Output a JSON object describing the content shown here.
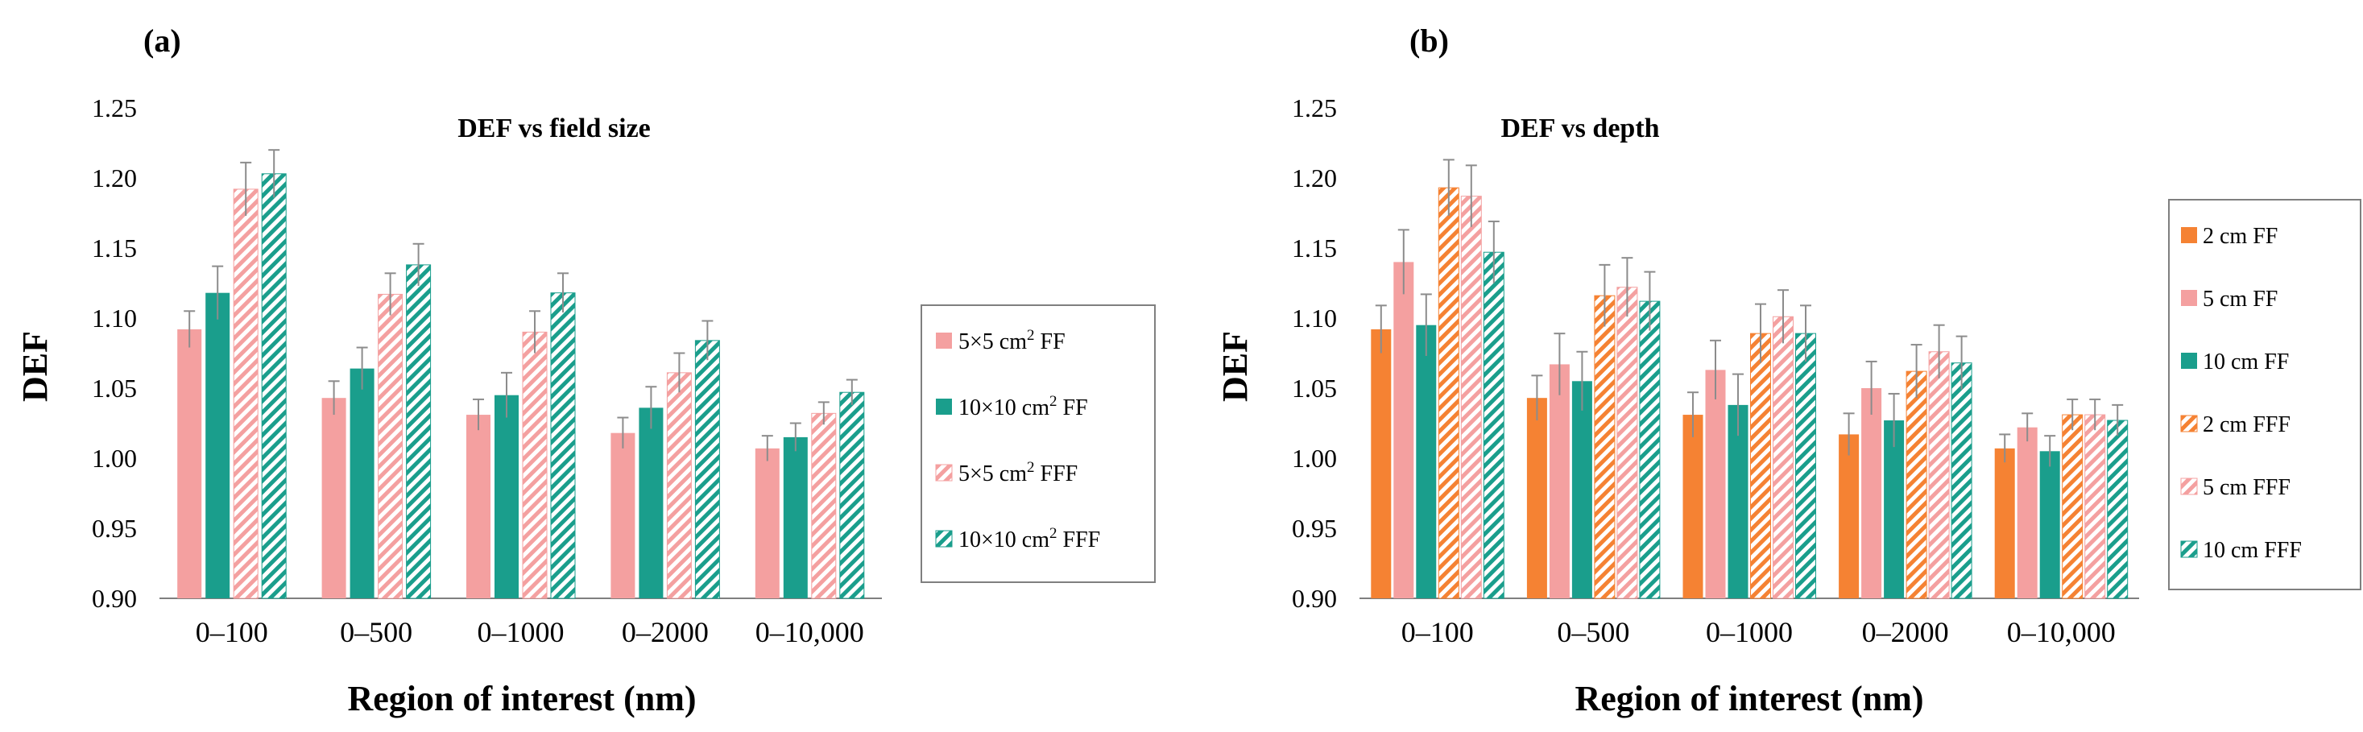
{
  "colors": {
    "pink": "#F4A0A0",
    "teal": "#1A9E8C",
    "orange": "#F58233",
    "error": "#8C8C8C",
    "axis": "#7F7F7F",
    "legend_border": "#7F7F7F"
  },
  "chart_data": [
    {
      "type": "bar",
      "panel_label": "(a)",
      "title": "DEF vs field size",
      "xlabel": "Region of interest (nm)",
      "ylabel": "DEF",
      "ylim": [
        0.9,
        1.25
      ],
      "yticks": [
        "0.90",
        "0.95",
        "1.00",
        "1.05",
        "1.10",
        "1.15",
        "1.20",
        "1.25"
      ],
      "grid": false,
      "legend_position": "right",
      "categories": [
        "0–100",
        "0–500",
        "0–1000",
        "0–2000",
        "0–10,000"
      ],
      "series": [
        {
          "name": "5×5 cm",
          "sup": "2",
          "suffix": " FF",
          "color": "#F4A0A0",
          "pattern": "solid",
          "values": [
            1.092,
            1.043,
            1.031,
            1.018,
            1.007
          ],
          "errors": [
            0.013,
            0.012,
            0.011,
            0.011,
            0.009
          ]
        },
        {
          "name": "10×10 cm",
          "sup": "2",
          "suffix": " FF",
          "color": "#1A9E8C",
          "pattern": "solid",
          "values": [
            1.118,
            1.064,
            1.045,
            1.036,
            1.015
          ],
          "errors": [
            0.019,
            0.015,
            0.016,
            0.015,
            0.01
          ]
        },
        {
          "name": "5×5 cm",
          "sup": "2",
          "suffix": " FFF",
          "color": "#F4A0A0",
          "pattern": "hatch",
          "values": [
            1.192,
            1.117,
            1.09,
            1.061,
            1.032
          ],
          "errors": [
            0.019,
            0.015,
            0.015,
            0.014,
            0.008
          ]
        },
        {
          "name": "10×10 cm",
          "sup": "2",
          "suffix": " FFF",
          "color": "#1A9E8C",
          "pattern": "hatch",
          "values": [
            1.203,
            1.138,
            1.118,
            1.084,
            1.047
          ],
          "errors": [
            0.017,
            0.015,
            0.014,
            0.014,
            0.009
          ]
        }
      ]
    },
    {
      "type": "bar",
      "panel_label": "(b)",
      "title": "DEF vs depth",
      "xlabel": "Region of interest (nm)",
      "ylabel": "DEF",
      "ylim": [
        0.9,
        1.25
      ],
      "yticks": [
        "0.90",
        "0.95",
        "1.00",
        "1.05",
        "1.10",
        "1.15",
        "1.20",
        "1.25"
      ],
      "grid": false,
      "legend_position": "right",
      "categories": [
        "0–100",
        "0–500",
        "0–1000",
        "0–2000",
        "0–10,000"
      ],
      "series": [
        {
          "name": "2 cm FF",
          "sup": "",
          "suffix": "",
          "color": "#F58233",
          "pattern": "solid",
          "values": [
            1.092,
            1.043,
            1.031,
            1.017,
            1.007
          ],
          "errors": [
            0.017,
            0.016,
            0.016,
            0.015,
            0.01
          ]
        },
        {
          "name": "5 cm FF",
          "sup": "",
          "suffix": "",
          "color": "#F4A0A0",
          "pattern": "solid",
          "values": [
            1.14,
            1.067,
            1.063,
            1.05,
            1.022
          ],
          "errors": [
            0.023,
            0.022,
            0.021,
            0.019,
            0.01
          ]
        },
        {
          "name": "10 cm FF",
          "sup": "",
          "suffix": "",
          "color": "#1A9E8C",
          "pattern": "solid",
          "values": [
            1.095,
            1.055,
            1.038,
            1.027,
            1.005
          ],
          "errors": [
            0.022,
            0.021,
            0.022,
            0.019,
            0.011
          ]
        },
        {
          "name": "2 cm FFF",
          "sup": "",
          "suffix": "",
          "color": "#F58233",
          "pattern": "hatch",
          "values": [
            1.193,
            1.116,
            1.089,
            1.062,
            1.031
          ],
          "errors": [
            0.02,
            0.022,
            0.021,
            0.019,
            0.011
          ]
        },
        {
          "name": "5 cm FFF",
          "sup": "",
          "suffix": "",
          "color": "#F4A0A0",
          "pattern": "hatch",
          "values": [
            1.187,
            1.122,
            1.101,
            1.076,
            1.031
          ],
          "errors": [
            0.022,
            0.021,
            0.019,
            0.019,
            0.011
          ]
        },
        {
          "name": "10 cm FFF",
          "sup": "",
          "suffix": "",
          "color": "#1A9E8C",
          "pattern": "hatch",
          "values": [
            1.147,
            1.112,
            1.089,
            1.068,
            1.027
          ],
          "errors": [
            0.022,
            0.021,
            0.02,
            0.019,
            0.011
          ]
        }
      ]
    }
  ]
}
